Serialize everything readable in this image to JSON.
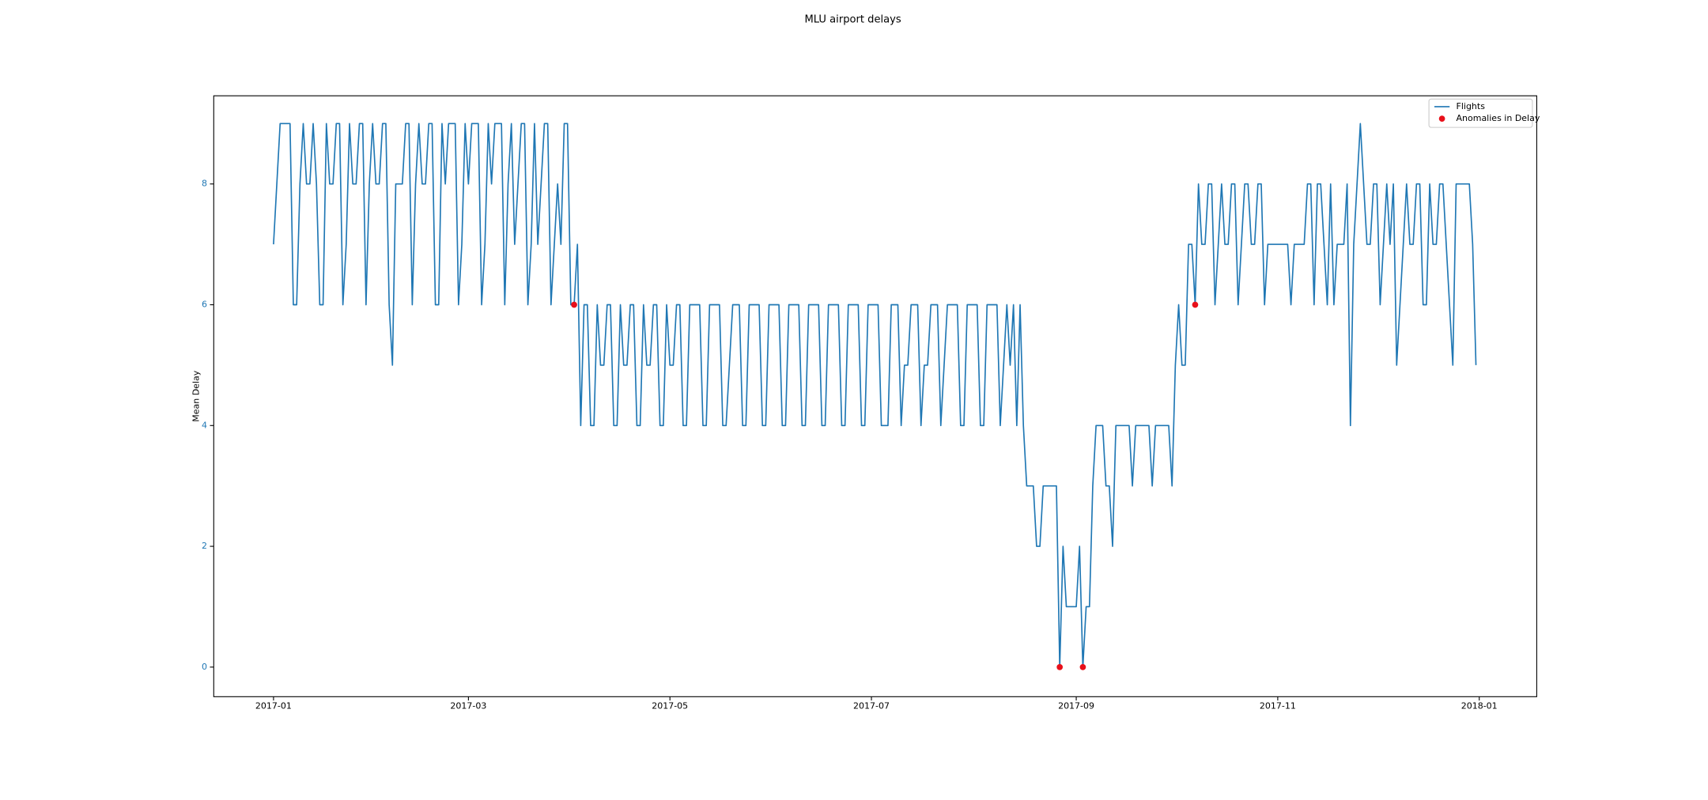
{
  "chart_data": {
    "type": "line",
    "title": "MLU airport delays",
    "ylabel": "Mean Delay",
    "xlim": [
      -18.1,
      382.4
    ],
    "ylim": [
      -0.49,
      9.46
    ],
    "xticks": [
      {
        "value": 0,
        "label": "2017-01"
      },
      {
        "value": 59,
        "label": "2017-03"
      },
      {
        "value": 120,
        "label": "2017-05"
      },
      {
        "value": 181,
        "label": "2017-07"
      },
      {
        "value": 243,
        "label": "2017-09"
      },
      {
        "value": 304,
        "label": "2017-11"
      },
      {
        "value": 365,
        "label": "2018-01"
      }
    ],
    "yticks": [
      0,
      2,
      4,
      6,
      8
    ],
    "ytick_color": "#1f77b4",
    "legend": "upper right",
    "series": [
      {
        "name": "Flights",
        "type": "line",
        "color": "#1f77b4",
        "x": [
          0,
          1,
          2,
          3,
          4,
          5,
          6,
          7,
          8,
          9,
          10,
          11,
          12,
          13,
          14,
          15,
          16,
          17,
          18,
          19,
          20,
          21,
          22,
          23,
          24,
          25,
          26,
          27,
          28,
          29,
          30,
          31,
          32,
          33,
          34,
          35,
          36,
          37,
          38,
          39,
          40,
          41,
          42,
          43,
          44,
          45,
          46,
          47,
          48,
          49,
          50,
          51,
          52,
          53,
          54,
          55,
          56,
          57,
          58,
          59,
          60,
          61,
          62,
          63,
          64,
          65,
          66,
          67,
          68,
          69,
          70,
          71,
          72,
          73,
          74,
          75,
          76,
          77,
          78,
          79,
          80,
          81,
          82,
          83,
          84,
          85,
          86,
          87,
          88,
          89,
          90,
          91,
          92,
          93,
          94,
          95,
          96,
          97,
          98,
          99,
          100,
          101,
          102,
          103,
          104,
          105,
          106,
          107,
          108,
          109,
          110,
          111,
          112,
          113,
          114,
          115,
          116,
          117,
          118,
          119,
          120,
          121,
          122,
          123,
          124,
          125,
          126,
          127,
          128,
          129,
          130,
          131,
          132,
          133,
          134,
          135,
          136,
          137,
          138,
          139,
          140,
          141,
          142,
          143,
          144,
          145,
          146,
          147,
          148,
          149,
          150,
          151,
          152,
          153,
          154,
          155,
          156,
          157,
          158,
          159,
          160,
          161,
          162,
          163,
          164,
          165,
          166,
          167,
          168,
          169,
          170,
          171,
          172,
          173,
          174,
          175,
          176,
          177,
          178,
          179,
          180,
          181,
          182,
          183,
          184,
          185,
          186,
          187,
          188,
          189,
          190,
          191,
          192,
          193,
          194,
          195,
          196,
          197,
          198,
          199,
          200,
          201,
          202,
          203,
          204,
          205,
          206,
          207,
          208,
          209,
          210,
          211,
          212,
          213,
          214,
          215,
          216,
          217,
          218,
          219,
          220,
          221,
          222,
          223,
          224,
          225,
          226,
          227,
          228,
          229,
          230,
          231,
          232,
          233,
          234,
          235,
          236,
          237,
          238,
          239,
          240,
          241,
          242,
          243,
          244,
          245,
          246,
          247,
          248,
          249,
          250,
          251,
          252,
          253,
          254,
          255,
          256,
          257,
          258,
          259,
          260,
          261,
          262,
          263,
          264,
          265,
          266,
          267,
          268,
          269,
          270,
          271,
          272,
          273,
          274,
          275,
          276,
          277,
          278,
          279,
          280,
          281,
          282,
          283,
          284,
          285,
          286,
          287,
          288,
          289,
          290,
          291,
          292,
          293,
          294,
          295,
          296,
          297,
          298,
          299,
          300,
          301,
          302,
          303,
          304,
          305,
          306,
          307,
          308,
          309,
          310,
          311,
          312,
          313,
          314,
          315,
          316,
          317,
          318,
          319,
          320,
          321,
          322,
          323,
          324,
          325,
          326,
          327,
          328,
          329,
          330,
          331,
          332,
          333,
          334,
          335,
          336,
          337,
          338,
          339,
          340,
          341,
          342,
          343,
          344,
          345,
          346,
          347,
          348,
          349,
          350,
          351,
          352,
          353,
          354,
          355,
          356,
          357,
          358,
          359,
          360,
          361,
          362,
          363,
          364
        ],
        "values": [
          7,
          8,
          9,
          9,
          9,
          9,
          6,
          6,
          8,
          9,
          8,
          8,
          9,
          8,
          6,
          6,
          9,
          8,
          8,
          9,
          9,
          6,
          7,
          9,
          8,
          8,
          9,
          9,
          6,
          8,
          9,
          8,
          8,
          9,
          9,
          6,
          5,
          8,
          8,
          8,
          9,
          9,
          6,
          8,
          9,
          8,
          8,
          9,
          9,
          6,
          6,
          9,
          8,
          9,
          9,
          9,
          6,
          7,
          9,
          8,
          9,
          9,
          9,
          6,
          7,
          9,
          8,
          9,
          9,
          9,
          6,
          8,
          9,
          7,
          8,
          9,
          9,
          6,
          7,
          9,
          7,
          8,
          9,
          9,
          6,
          7,
          8,
          7,
          9,
          9,
          6,
          6,
          7,
          4,
          6,
          6,
          4,
          4,
          6,
          5,
          5,
          6,
          6,
          4,
          4,
          6,
          5,
          5,
          6,
          6,
          4,
          4,
          6,
          5,
          5,
          6,
          6,
          4,
          4,
          6,
          5,
          5,
          6,
          6,
          4,
          4,
          6,
          6,
          6,
          6,
          4,
          4,
          6,
          6,
          6,
          6,
          4,
          4,
          5,
          6,
          6,
          6,
          4,
          4,
          6,
          6,
          6,
          6,
          4,
          4,
          6,
          6,
          6,
          6,
          4,
          4,
          6,
          6,
          6,
          6,
          4,
          4,
          6,
          6,
          6,
          6,
          4,
          4,
          6,
          6,
          6,
          6,
          4,
          4,
          6,
          6,
          6,
          6,
          4,
          4,
          6,
          6,
          6,
          6,
          4,
          4,
          4,
          6,
          6,
          6,
          4,
          5,
          5,
          6,
          6,
          6,
          4,
          5,
          5,
          6,
          6,
          6,
          4,
          5,
          6,
          6,
          6,
          6,
          4,
          4,
          6,
          6,
          6,
          6,
          4,
          4,
          6,
          6,
          6,
          6,
          4,
          5,
          6,
          5,
          6,
          4,
          6,
          4,
          3,
          3,
          3,
          2,
          2,
          3,
          3,
          3,
          3,
          3,
          0,
          2,
          1,
          1,
          1,
          1,
          2,
          0,
          1,
          1,
          3,
          4,
          4,
          4,
          3,
          3,
          2,
          4,
          4,
          4,
          4,
          4,
          3,
          4,
          4,
          4,
          4,
          4,
          3,
          4,
          4,
          4,
          4,
          4,
          3,
          5,
          6,
          5,
          5,
          7,
          7,
          6,
          8,
          7,
          7,
          8,
          8,
          6,
          7,
          8,
          7,
          7,
          8,
          8,
          6,
          7,
          8,
          8,
          7,
          7,
          8,
          8,
          6,
          7,
          7,
          7,
          7,
          7,
          7,
          7,
          6,
          7,
          7,
          7,
          7,
          8,
          8,
          6,
          8,
          8,
          7,
          6,
          8,
          6,
          7,
          7,
          7,
          8,
          4,
          7,
          8,
          9,
          8,
          7,
          7,
          8,
          8,
          6,
          7,
          8,
          7,
          8,
          5,
          6,
          7,
          8,
          7,
          7,
          8,
          8,
          6,
          6,
          8,
          7,
          7,
          8,
          8,
          7,
          6,
          5,
          8,
          8,
          8,
          8,
          8,
          7,
          5
        ]
      },
      {
        "name": "Anomalies in Delay",
        "type": "scatter",
        "color": "#e8101a",
        "x": [
          91,
          238,
          245,
          279
        ],
        "values": [
          6,
          0,
          0,
          6
        ]
      }
    ]
  }
}
